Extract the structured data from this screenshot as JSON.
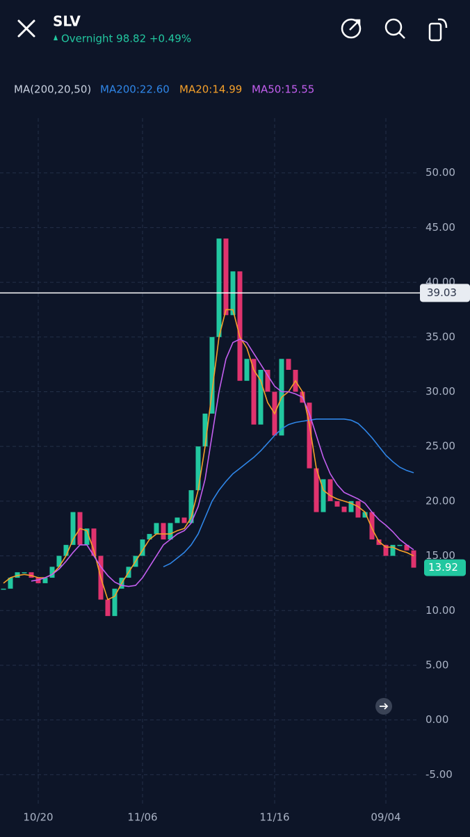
{
  "header": {
    "symbol": "SLV",
    "quote": "Overnight 98.82 +0.49%"
  },
  "chart_data": {
    "type": "candlestick",
    "indicator": "MA(200,20,50)",
    "categories": [
      null,
      null,
      null,
      null,
      null,
      "10/20",
      null,
      null,
      null,
      null,
      null,
      null,
      null,
      null,
      null,
      null,
      null,
      null,
      null,
      null,
      "11/06",
      null,
      null,
      null,
      null,
      null,
      null,
      null,
      null,
      null,
      null,
      null,
      null,
      null,
      null,
      null,
      null,
      null,
      null,
      "11/16",
      null,
      null,
      null,
      null,
      null,
      null,
      null,
      null,
      null,
      null,
      null,
      null,
      null,
      null,
      null,
      "09/04",
      null,
      null,
      null,
      null
    ],
    "price": {
      "up_color": "#22c7a0",
      "down_color": "#e0336e",
      "values": [
        12,
        13,
        13.5,
        13.5,
        13,
        12.5,
        13,
        14,
        15,
        16,
        19,
        16,
        17.5,
        15,
        11,
        9.5,
        12,
        13,
        14,
        15,
        16.5,
        17,
        18,
        16.5,
        18,
        18.5,
        18,
        21,
        25,
        28,
        35,
        44,
        37,
        41,
        31,
        33,
        27,
        32,
        30,
        26,
        33,
        32,
        30,
        29,
        23,
        19,
        22,
        20,
        19.5,
        19,
        20,
        18.5,
        19,
        16.5,
        16,
        15,
        16,
        16,
        15.5,
        13.92
      ]
    },
    "series": [
      {
        "name": "MA200:22.60",
        "color": "#2f86e8",
        "values": [
          null,
          null,
          null,
          null,
          null,
          null,
          null,
          null,
          null,
          null,
          null,
          null,
          null,
          null,
          null,
          null,
          null,
          null,
          null,
          null,
          null,
          null,
          null,
          14,
          14.3,
          14.8,
          15.3,
          16,
          17,
          18.5,
          20,
          21,
          21.8,
          22.5,
          23,
          23.5,
          24,
          24.6,
          25.3,
          26,
          26.6,
          27,
          27.2,
          27.3,
          27.4,
          27.5,
          27.5,
          27.5,
          27.5,
          27.5,
          27.4,
          27.1,
          26.5,
          25.8,
          25,
          24.2,
          23.6,
          23.1,
          22.8,
          22.6
        ]
      },
      {
        "name": "MA20:14.99",
        "color": "#f5a02a",
        "values": [
          12.5,
          13,
          13.2,
          13.3,
          13.2,
          13,
          13,
          13.3,
          14,
          15,
          16.5,
          17.5,
          17.3,
          15.5,
          13,
          11,
          11.3,
          12.5,
          13.5,
          14.5,
          15.5,
          16.5,
          17,
          17,
          17,
          17.3,
          17.5,
          18.5,
          21,
          25,
          30,
          35,
          37.5,
          37.5,
          35,
          34,
          32,
          31,
          29,
          28,
          29.5,
          30,
          31,
          30,
          27,
          23,
          21,
          20.5,
          20.2,
          20,
          19.8,
          19.5,
          19,
          17.5,
          16.3,
          15.8,
          15.8,
          15.5,
          15.3,
          14.99
        ]
      },
      {
        "name": "MA50:15.55",
        "color": "#c45ff0",
        "values": [
          null,
          null,
          null,
          null,
          12.7,
          12.8,
          13,
          13.3,
          13.8,
          14.5,
          15.3,
          16,
          16,
          15,
          14,
          13.2,
          12.6,
          12.3,
          12.2,
          12.3,
          13,
          14,
          15,
          16,
          16.5,
          17,
          17.3,
          18,
          19.5,
          22,
          26,
          30,
          33,
          34.5,
          34.8,
          34.5,
          33.5,
          32.5,
          31.5,
          30.5,
          30,
          30,
          29.8,
          29.5,
          28,
          26,
          24,
          22.5,
          21.5,
          20.8,
          20.5,
          20.2,
          19.8,
          19,
          18.3,
          17.8,
          17.2,
          16.5,
          16,
          15.55
        ]
      }
    ],
    "hline": 39.03,
    "ylim": [
      -7.9,
      55
    ],
    "yticks": [
      {
        "value": -5,
        "label": "-5.00"
      },
      {
        "value": 0,
        "label": "0.00"
      },
      {
        "value": 5,
        "label": "5.00"
      },
      {
        "value": 10,
        "label": "10.00"
      },
      {
        "value": 15,
        "label": "15.00"
      },
      {
        "value": 20,
        "label": "20.00"
      },
      {
        "value": 25,
        "label": "25.00"
      },
      {
        "value": 30,
        "label": "30.00"
      },
      {
        "value": 35,
        "label": "35.00"
      },
      {
        "value": 40,
        "label": "40.00"
      },
      {
        "value": 45,
        "label": "45.00"
      },
      {
        "value": 50,
        "label": "50.00"
      }
    ],
    "grid": true
  }
}
